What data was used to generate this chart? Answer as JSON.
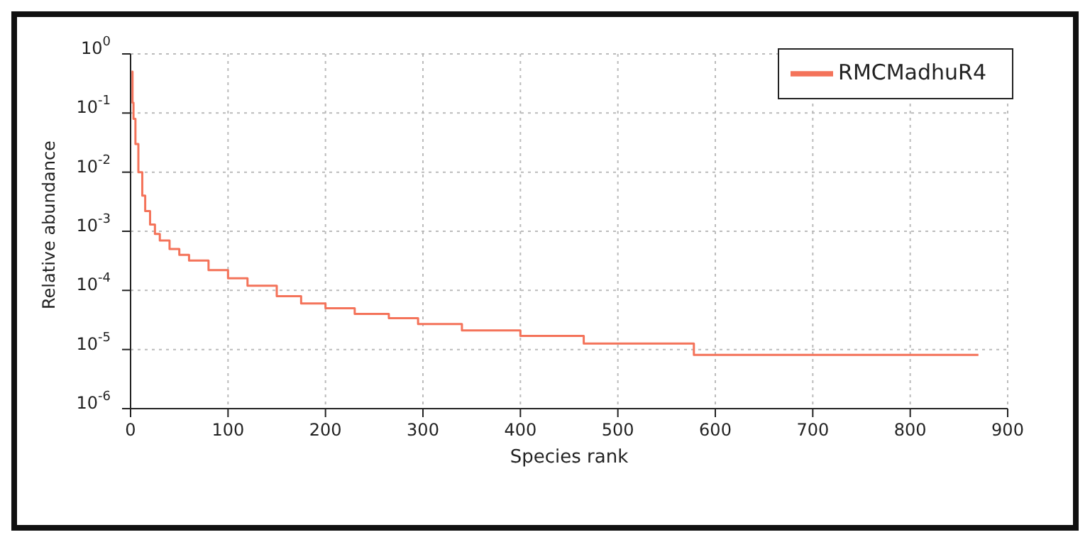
{
  "chart_data": {
    "type": "step",
    "xlabel": "Species rank",
    "ylabel": "Relative abundance",
    "x": [
      1,
      2,
      3,
      5,
      8,
      12,
      15,
      20,
      25,
      30,
      40,
      50,
      60,
      80,
      100,
      120,
      150,
      175,
      200,
      230,
      265,
      295,
      340,
      400,
      465,
      578,
      870
    ],
    "series": [
      {
        "name": "RMCMadhuR4",
        "color": "#f4735a",
        "values": [
          0.5,
          0.15,
          0.08,
          0.03,
          0.01,
          0.004,
          0.0022,
          0.0013,
          0.0009,
          0.0007,
          0.0005,
          0.0004,
          0.00032,
          0.00022,
          0.00016,
          0.00012,
          8e-05,
          6e-05,
          5e-05,
          4e-05,
          3.4e-05,
          2.7e-05,
          2.1e-05,
          1.7e-05,
          1.26e-05,
          8.1e-06,
          8.1e-06
        ]
      }
    ],
    "xlim": [
      0,
      900
    ],
    "xticks": [
      0,
      100,
      200,
      300,
      400,
      500,
      600,
      700,
      800,
      900
    ],
    "ylim": [
      1e-06,
      1
    ],
    "yticks": [
      {
        "value": 1e-06,
        "label": "10$^{-6}$"
      },
      {
        "value": 1e-05,
        "label": "10$^{-5}$"
      },
      {
        "value": 0.0001,
        "label": "10$^{-4}$"
      },
      {
        "value": 0.001,
        "label": "10$^{-3}$"
      },
      {
        "value": 0.01,
        "label": "10$^{-2}$"
      },
      {
        "value": 0.1,
        "label": "10$^{-1}$"
      },
      {
        "value": 1,
        "label": "10$^{0}$"
      }
    ],
    "log": true,
    "grid": true,
    "legend": "top right",
    "marker": "none",
    "line_style": "solid"
  }
}
